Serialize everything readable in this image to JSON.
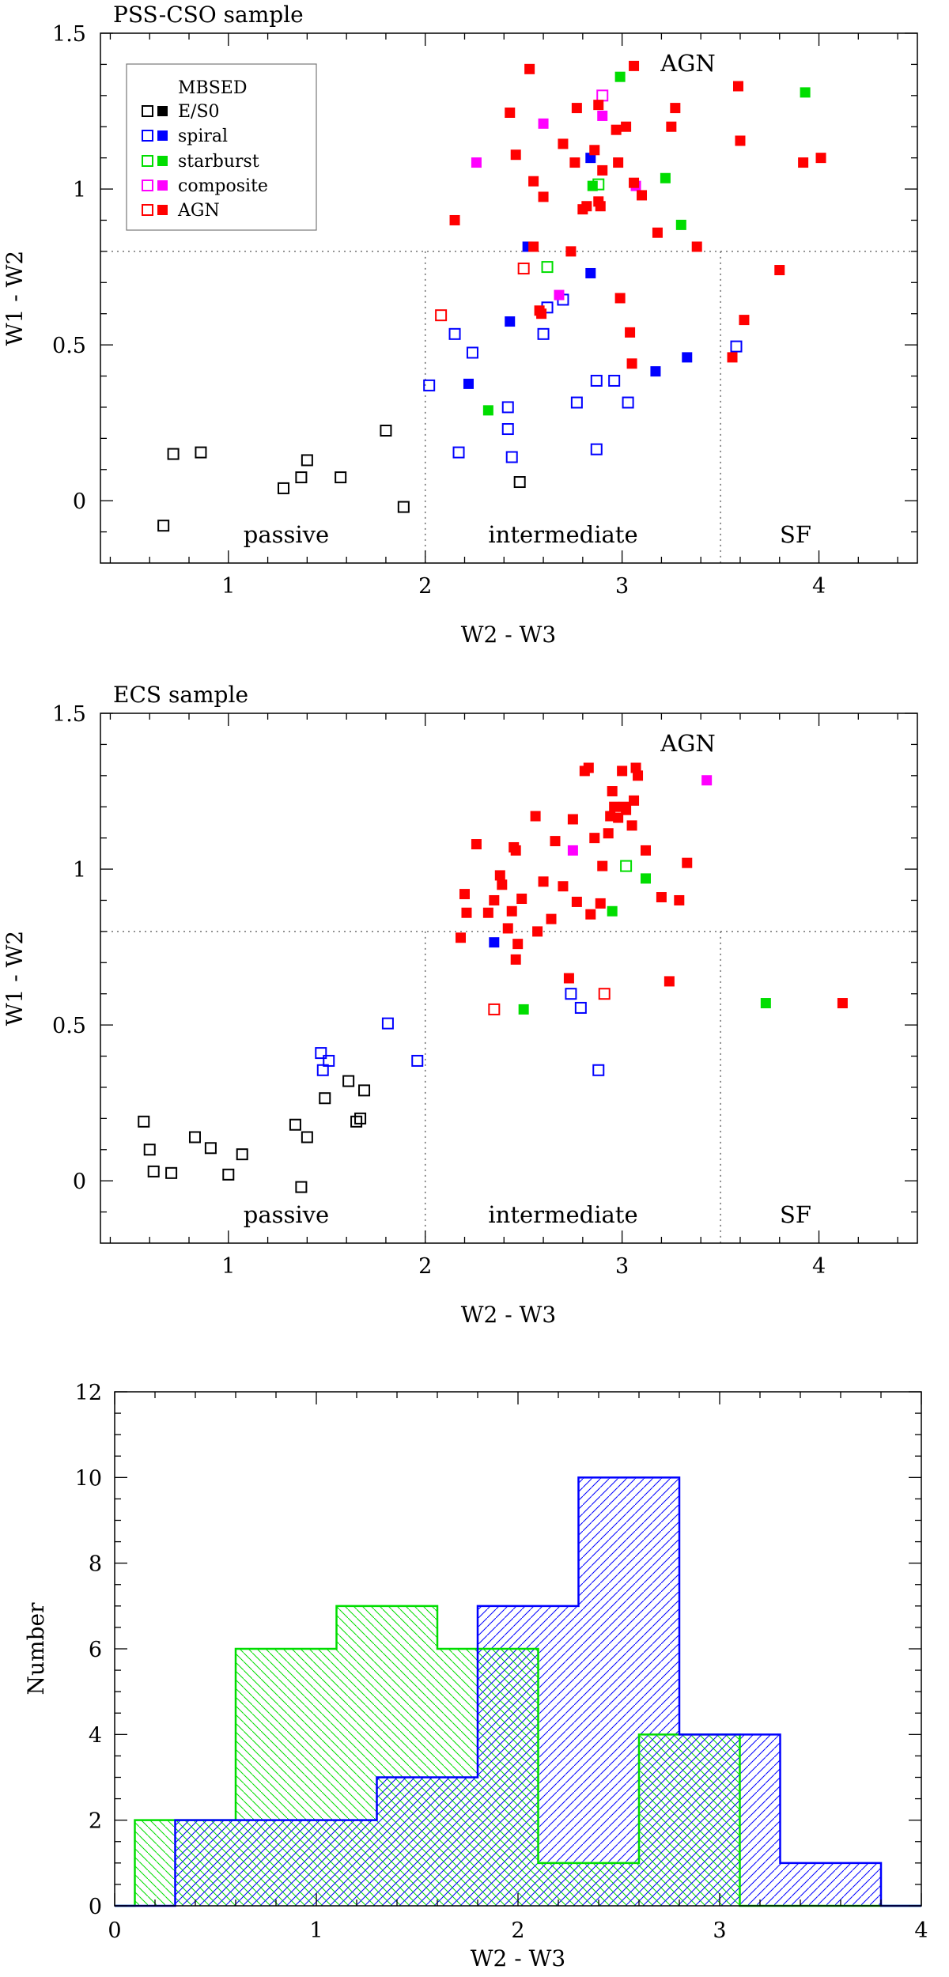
{
  "chart_data": [
    {
      "type": "scatter",
      "title": "PSS-CSO sample",
      "xlabel": "W2 - W3",
      "ylabel": "W1 - W2",
      "xlim": [
        0.35,
        4.5
      ],
      "ylim": [
        -0.2,
        1.5
      ],
      "xticks": [
        "1",
        "2",
        "3",
        "4"
      ],
      "yticks": [
        "0",
        "0.5",
        "1",
        "1.5"
      ],
      "grid": false,
      "dividers": {
        "y": 0.8,
        "x": [
          2.0,
          3.5
        ]
      },
      "region_labels": [
        "passive",
        "intermediate",
        "SF",
        "AGN"
      ],
      "legend": {
        "title": "MBSED",
        "position": "top-left",
        "entries": [
          {
            "label": "E/S0",
            "color": "#000000"
          },
          {
            "label": "spiral",
            "color": "#0000ff"
          },
          {
            "label": "starburst",
            "color": "#00dd00"
          },
          {
            "label": "composite",
            "color": "#ff00ff"
          },
          {
            "label": "AGN",
            "color": "#ff0000"
          }
        ]
      },
      "series": [
        {
          "class": "E/S0",
          "filled": false,
          "color": "#000000",
          "points": [
            [
              0.67,
              -0.08
            ],
            [
              0.72,
              0.15
            ],
            [
              0.86,
              0.155
            ],
            [
              1.28,
              0.04
            ],
            [
              1.37,
              0.075
            ],
            [
              1.4,
              0.13
            ],
            [
              1.57,
              0.075
            ],
            [
              1.8,
              0.225
            ],
            [
              1.89,
              -0.02
            ],
            [
              2.48,
              0.06
            ]
          ]
        },
        {
          "class": "spiral",
          "filled": false,
          "color": "#0000ff",
          "points": [
            [
              2.02,
              0.37
            ],
            [
              2.15,
              0.535
            ],
            [
              2.17,
              0.155
            ],
            [
              2.24,
              0.475
            ],
            [
              2.42,
              0.3
            ],
            [
              2.42,
              0.23
            ],
            [
              2.44,
              0.14
            ],
            [
              2.6,
              0.535
            ],
            [
              2.62,
              0.62
            ],
            [
              2.7,
              0.645
            ],
            [
              2.77,
              0.315
            ],
            [
              2.87,
              0.385
            ],
            [
              2.87,
              0.165
            ],
            [
              2.96,
              0.385
            ],
            [
              3.03,
              0.315
            ],
            [
              3.58,
              0.495
            ]
          ]
        },
        {
          "class": "spiral",
          "filled": true,
          "color": "#0000ff",
          "points": [
            [
              2.22,
              0.375
            ],
            [
              2.43,
              0.575
            ],
            [
              2.52,
              0.815
            ],
            [
              2.84,
              0.73
            ],
            [
              2.84,
              1.1
            ],
            [
              3.17,
              0.415
            ],
            [
              3.33,
              0.46
            ]
          ]
        },
        {
          "class": "starburst",
          "filled": false,
          "color": "#00dd00",
          "points": [
            [
              2.62,
              0.75
            ],
            [
              2.88,
              1.015
            ]
          ]
        },
        {
          "class": "starburst",
          "filled": true,
          "color": "#00dd00",
          "points": [
            [
              2.32,
              0.29
            ],
            [
              2.85,
              1.01
            ],
            [
              2.99,
              1.36
            ],
            [
              3.22,
              1.035
            ],
            [
              3.3,
              0.885
            ],
            [
              3.93,
              1.31
            ]
          ]
        },
        {
          "class": "composite",
          "filled": false,
          "color": "#ff00ff",
          "points": [
            [
              2.9,
              1.3
            ]
          ]
        },
        {
          "class": "composite",
          "filled": true,
          "color": "#ff00ff",
          "points": [
            [
              2.26,
              1.085
            ],
            [
              2.6,
              1.21
            ],
            [
              2.68,
              0.66
            ],
            [
              2.9,
              1.235
            ],
            [
              3.07,
              1.01
            ]
          ]
        },
        {
          "class": "AGN",
          "filled": false,
          "color": "#ff0000",
          "points": [
            [
              2.08,
              0.595
            ],
            [
              2.5,
              0.745
            ]
          ]
        },
        {
          "class": "AGN",
          "filled": true,
          "color": "#ff0000",
          "points": [
            [
              2.15,
              0.9
            ],
            [
              2.43,
              1.245
            ],
            [
              2.46,
              1.11
            ],
            [
              2.53,
              1.385
            ],
            [
              2.55,
              0.815
            ],
            [
              2.55,
              1.025
            ],
            [
              2.58,
              0.61
            ],
            [
              2.59,
              0.6
            ],
            [
              2.6,
              0.975
            ],
            [
              2.7,
              1.145
            ],
            [
              2.74,
              0.8
            ],
            [
              2.76,
              1.085
            ],
            [
              2.77,
              1.26
            ],
            [
              2.8,
              0.935
            ],
            [
              2.82,
              0.945
            ],
            [
              2.86,
              1.125
            ],
            [
              2.88,
              1.27
            ],
            [
              2.88,
              0.96
            ],
            [
              2.89,
              0.945
            ],
            [
              2.9,
              1.06
            ],
            [
              2.97,
              1.19
            ],
            [
              2.98,
              1.085
            ],
            [
              2.99,
              0.65
            ],
            [
              3.02,
              1.2
            ],
            [
              3.04,
              0.54
            ],
            [
              3.05,
              0.44
            ],
            [
              3.06,
              1.02
            ],
            [
              3.06,
              1.395
            ],
            [
              3.1,
              0.98
            ],
            [
              3.18,
              0.86
            ],
            [
              3.25,
              1.2
            ],
            [
              3.27,
              1.26
            ],
            [
              3.38,
              0.815
            ],
            [
              3.56,
              0.46
            ],
            [
              3.59,
              1.33
            ],
            [
              3.6,
              1.155
            ],
            [
              3.62,
              0.58
            ],
            [
              3.8,
              0.74
            ],
            [
              3.92,
              1.085
            ],
            [
              4.01,
              1.1
            ]
          ]
        }
      ]
    },
    {
      "type": "scatter",
      "title": "ECS sample",
      "xlabel": "W2 - W3",
      "ylabel": "W1 - W2",
      "xlim": [
        0.35,
        4.5
      ],
      "ylim": [
        -0.2,
        1.5
      ],
      "xticks": [
        "1",
        "2",
        "3",
        "4"
      ],
      "yticks": [
        "0",
        "0.5",
        "1",
        "1.5"
      ],
      "grid": false,
      "dividers": {
        "y": 0.8,
        "x": [
          2.0,
          3.5
        ]
      },
      "region_labels": [
        "passive",
        "intermediate",
        "SF",
        "AGN"
      ],
      "series": [
        {
          "class": "E/S0",
          "filled": false,
          "color": "#000000",
          "points": [
            [
              0.57,
              0.19
            ],
            [
              0.6,
              0.1
            ],
            [
              0.62,
              0.03
            ],
            [
              0.71,
              0.025
            ],
            [
              0.83,
              0.14
            ],
            [
              0.91,
              0.105
            ],
            [
              1.0,
              0.02
            ],
            [
              1.07,
              0.085
            ],
            [
              1.34,
              0.18
            ],
            [
              1.37,
              -0.02
            ],
            [
              1.4,
              0.14
            ],
            [
              1.49,
              0.265
            ],
            [
              1.61,
              0.32
            ],
            [
              1.65,
              0.19
            ],
            [
              1.67,
              0.2
            ],
            [
              1.69,
              0.29
            ]
          ]
        },
        {
          "class": "spiral",
          "filled": false,
          "color": "#0000ff",
          "points": [
            [
              1.47,
              0.41
            ],
            [
              1.48,
              0.355
            ],
            [
              1.51,
              0.385
            ],
            [
              1.81,
              0.505
            ],
            [
              1.96,
              0.385
            ],
            [
              2.74,
              0.6
            ],
            [
              2.79,
              0.555
            ],
            [
              2.88,
              0.355
            ]
          ]
        },
        {
          "class": "spiral",
          "filled": true,
          "color": "#0000ff",
          "points": [
            [
              2.35,
              0.765
            ]
          ]
        },
        {
          "class": "starburst",
          "filled": false,
          "color": "#00dd00",
          "points": [
            [
              3.02,
              1.01
            ]
          ]
        },
        {
          "class": "starburst",
          "filled": true,
          "color": "#00dd00",
          "points": [
            [
              2.5,
              0.55
            ],
            [
              2.95,
              0.865
            ],
            [
              3.12,
              0.97
            ],
            [
              3.73,
              0.57
            ]
          ]
        },
        {
          "class": "composite",
          "filled": true,
          "color": "#ff00ff",
          "points": [
            [
              2.75,
              1.06
            ],
            [
              3.43,
              1.285
            ]
          ]
        },
        {
          "class": "AGN",
          "filled": false,
          "color": "#ff0000",
          "points": [
            [
              2.35,
              0.55
            ],
            [
              2.91,
              0.6
            ]
          ]
        },
        {
          "class": "AGN",
          "filled": true,
          "color": "#ff0000",
          "points": [
            [
              2.18,
              0.78
            ],
            [
              2.2,
              0.92
            ],
            [
              2.21,
              0.86
            ],
            [
              2.26,
              1.08
            ],
            [
              2.32,
              0.86
            ],
            [
              2.35,
              0.9
            ],
            [
              2.38,
              0.98
            ],
            [
              2.39,
              0.95
            ],
            [
              2.42,
              0.81
            ],
            [
              2.44,
              0.865
            ],
            [
              2.45,
              1.07
            ],
            [
              2.46,
              1.06
            ],
            [
              2.46,
              0.71
            ],
            [
              2.47,
              0.76
            ],
            [
              2.49,
              0.905
            ],
            [
              2.56,
              1.17
            ],
            [
              2.57,
              0.8
            ],
            [
              2.6,
              0.96
            ],
            [
              2.64,
              0.84
            ],
            [
              2.66,
              1.09
            ],
            [
              2.7,
              0.945
            ],
            [
              2.73,
              0.65
            ],
            [
              2.75,
              1.16
            ],
            [
              2.77,
              0.895
            ],
            [
              2.81,
              1.315
            ],
            [
              2.83,
              1.325
            ],
            [
              2.84,
              0.855
            ],
            [
              2.86,
              1.1
            ],
            [
              2.89,
              0.89
            ],
            [
              2.9,
              1.01
            ],
            [
              2.93,
              1.115
            ],
            [
              2.94,
              1.17
            ],
            [
              2.95,
              1.25
            ],
            [
              2.96,
              1.2
            ],
            [
              2.98,
              1.165
            ],
            [
              3.0,
              1.315
            ],
            [
              3.01,
              1.2
            ],
            [
              3.02,
              1.19
            ],
            [
              3.05,
              1.14
            ],
            [
              3.06,
              1.22
            ],
            [
              3.07,
              1.325
            ],
            [
              3.08,
              1.3
            ],
            [
              3.12,
              1.06
            ],
            [
              3.2,
              0.91
            ],
            [
              3.24,
              0.64
            ],
            [
              3.29,
              0.9
            ],
            [
              3.33,
              1.02
            ],
            [
              4.12,
              0.57
            ]
          ]
        }
      ]
    },
    {
      "type": "histogram",
      "xlabel": "W2 - W3",
      "ylabel": "Number",
      "xlim": [
        0,
        4
      ],
      "ylim": [
        0,
        12
      ],
      "xticks": [
        "0",
        "1",
        "2",
        "3",
        "4"
      ],
      "yticks": [
        "0",
        "2",
        "4",
        "6",
        "8",
        "10",
        "12"
      ],
      "series": [
        {
          "color": "#00dd00",
          "hatch": "backslash",
          "edges": [
            -0.1,
            0.1,
            0.6,
            1.1,
            1.6,
            2.1,
            2.6,
            3.1,
            3.6,
            4.0
          ],
          "counts": [
            0,
            2,
            6,
            7,
            6,
            1,
            4,
            0,
            0
          ]
        },
        {
          "color": "#0000ff",
          "hatch": "slash",
          "edges": [
            -0.1,
            0.3,
            1.3,
            1.8,
            2.3,
            2.8,
            3.3,
            3.8,
            4.0
          ],
          "counts": [
            0,
            2,
            3,
            7,
            10,
            4,
            1,
            0
          ]
        }
      ]
    }
  ]
}
